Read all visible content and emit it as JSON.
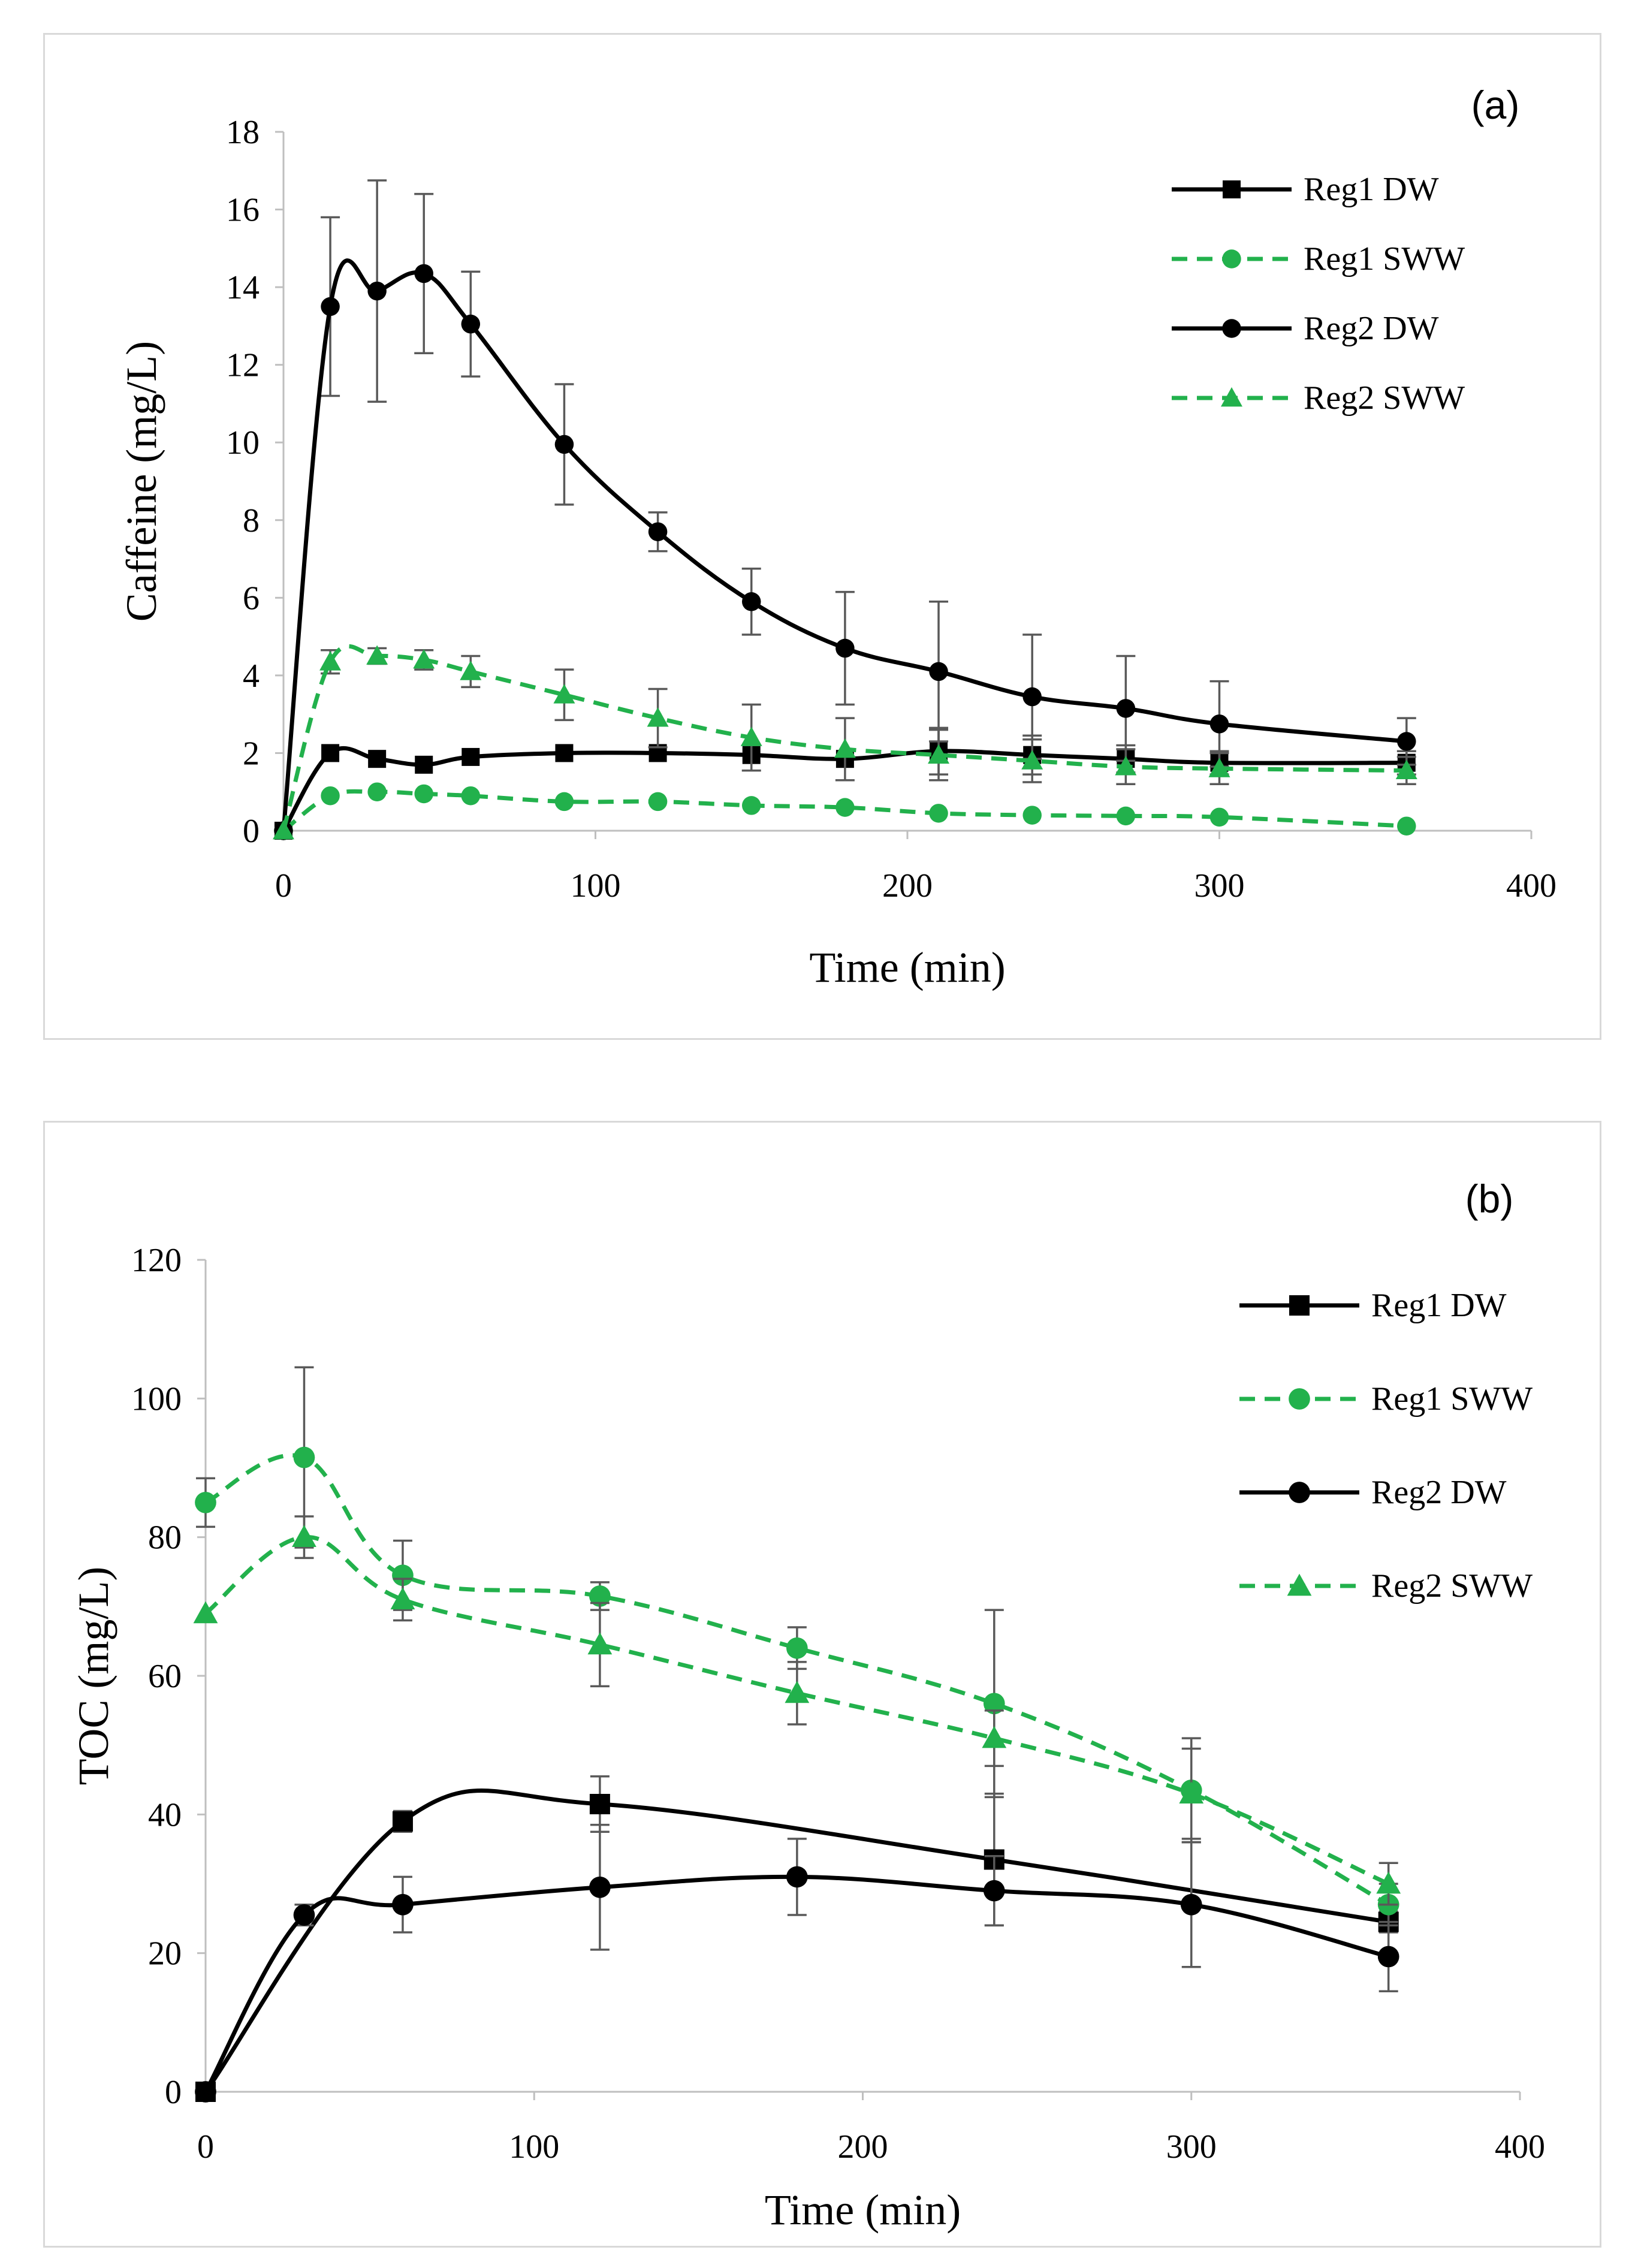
{
  "chart_data": [
    {
      "type": "line",
      "panel_label": "(a)",
      "xlabel": "Time (min)",
      "ylabel": "Caffeine (mg/L)",
      "xlim": [
        0,
        400
      ],
      "ylim": [
        0,
        18
      ],
      "xticks": [
        0,
        100,
        200,
        300,
        400
      ],
      "yticks": [
        0,
        2,
        4,
        6,
        8,
        10,
        12,
        14,
        16,
        18
      ],
      "grid": false,
      "legend_position": "top-right",
      "series": [
        {
          "name": "Reg1 DW",
          "color": "#000000",
          "dash": "solid",
          "marker": "square",
          "x": [
            0,
            15,
            30,
            45,
            60,
            90,
            120,
            150,
            180,
            210,
            240,
            270,
            300,
            360
          ],
          "y": [
            0,
            2.0,
            1.85,
            1.7,
            1.9,
            2.0,
            2.0,
            1.95,
            1.85,
            2.05,
            1.95,
            1.85,
            1.75,
            1.75
          ],
          "err": [
            0,
            0,
            0,
            0,
            0,
            0,
            0,
            0,
            0,
            0.6,
            0.5,
            0.35,
            0.3,
            0.3
          ]
        },
        {
          "name": "Reg1 SWW",
          "color": "#22b14c",
          "dash": "dashed",
          "marker": "circle",
          "x": [
            0,
            15,
            30,
            45,
            60,
            90,
            120,
            150,
            180,
            210,
            240,
            270,
            300,
            360
          ],
          "y": [
            0,
            0.9,
            1.0,
            0.95,
            0.9,
            0.75,
            0.75,
            0.65,
            0.6,
            0.45,
            0.4,
            0.38,
            0.35,
            0.12
          ],
          "err": [
            0,
            0,
            0,
            0,
            0,
            0,
            0,
            0,
            0,
            0,
            0,
            0,
            0,
            0
          ]
        },
        {
          "name": "Reg2 DW",
          "color": "#000000",
          "dash": "solid",
          "marker": "circle",
          "x": [
            0,
            15,
            30,
            45,
            60,
            90,
            120,
            150,
            180,
            210,
            240,
            270,
            300,
            360
          ],
          "y": [
            0,
            13.5,
            13.9,
            14.35,
            13.05,
            9.95,
            7.7,
            5.9,
            4.7,
            4.1,
            3.45,
            3.15,
            2.75,
            2.3
          ],
          "err": [
            0,
            2.3,
            2.85,
            2.05,
            1.35,
            1.55,
            0.5,
            0.85,
            1.45,
            1.8,
            1.6,
            1.35,
            1.1,
            0.6
          ]
        },
        {
          "name": "Reg2 SWW",
          "color": "#22b14c",
          "dash": "dashed",
          "marker": "triangle",
          "x": [
            0,
            15,
            30,
            45,
            60,
            90,
            120,
            150,
            180,
            210,
            240,
            270,
            300,
            360
          ],
          "y": [
            0,
            4.35,
            4.5,
            4.4,
            4.1,
            3.5,
            2.9,
            2.4,
            2.1,
            1.95,
            1.8,
            1.65,
            1.6,
            1.55
          ],
          "err": [
            0,
            0.3,
            0.2,
            0.25,
            0.4,
            0.65,
            0.75,
            0.85,
            0.8,
            0.65,
            0.55,
            0.45,
            0.4,
            0.35
          ]
        }
      ]
    },
    {
      "type": "line",
      "panel_label": "(b)",
      "xlabel": "Time (min)",
      "ylabel": "TOC (mg/L)",
      "xlim": [
        0,
        400
      ],
      "ylim": [
        0,
        120
      ],
      "xticks": [
        0,
        100,
        200,
        300,
        400
      ],
      "yticks": [
        0,
        20,
        40,
        60,
        80,
        100,
        120
      ],
      "grid": false,
      "legend_position": "top-right",
      "series": [
        {
          "name": "Reg1 DW",
          "color": "#000000",
          "dash": "solid",
          "marker": "square",
          "x": [
            0,
            60,
            120,
            240,
            360
          ],
          "y": [
            0,
            39,
            41.5,
            33.5,
            24.5
          ],
          "err": [
            0,
            1.5,
            4.0,
            9.5,
            1.5
          ]
        },
        {
          "name": "Reg1 SWW",
          "color": "#22b14c",
          "dash": "dashed",
          "marker": "circle",
          "x": [
            0,
            30,
            60,
            120,
            180,
            240,
            300,
            360
          ],
          "y": [
            85,
            91.5,
            74.5,
            71.5,
            64,
            56,
            43.5,
            27
          ],
          "err": [
            3.5,
            13,
            5,
            2,
            3,
            13.5,
            7.5,
            3
          ]
        },
        {
          "name": "Reg2 DW",
          "color": "#000000",
          "dash": "solid",
          "marker": "circle",
          "x": [
            0,
            30,
            60,
            120,
            180,
            240,
            300,
            360
          ],
          "y": [
            0,
            25.5,
            27,
            29.5,
            31,
            29,
            27,
            19.5
          ],
          "err": [
            0,
            1.5,
            4,
            9,
            5.5,
            5,
            9,
            5
          ]
        },
        {
          "name": "Reg2 SWW",
          "color": "#22b14c",
          "dash": "dashed",
          "marker": "triangle",
          "x": [
            0,
            30,
            60,
            120,
            180,
            240,
            300,
            360
          ],
          "y": [
            69,
            80,
            71,
            64.5,
            57.5,
            51,
            43,
            30
          ],
          "err": [
            0,
            3,
            3,
            6,
            4.5,
            4,
            6.5,
            3
          ]
        }
      ]
    }
  ]
}
